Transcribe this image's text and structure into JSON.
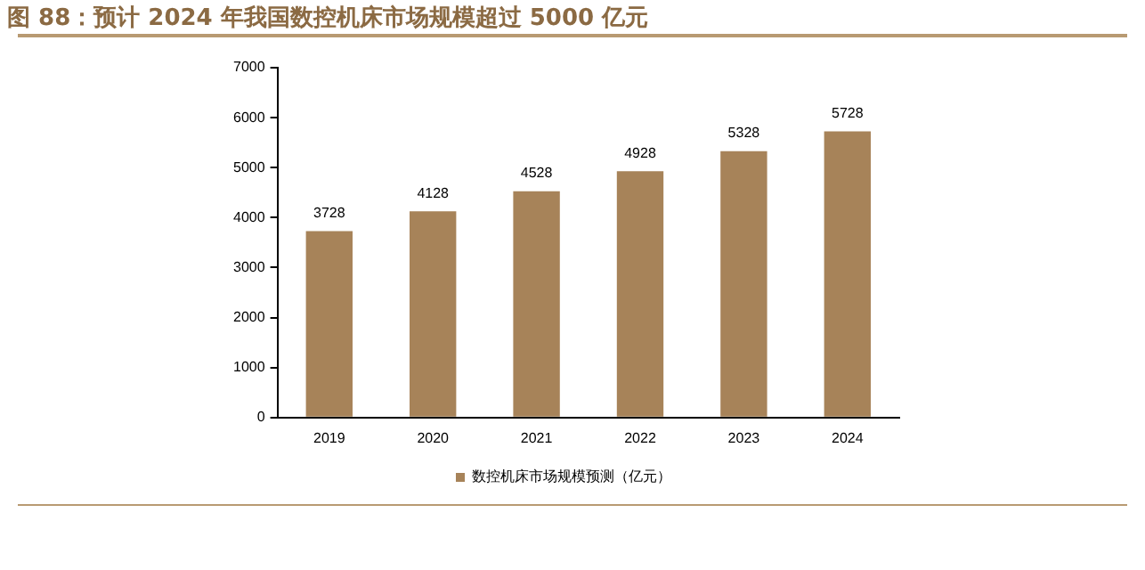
{
  "chart_data": {
    "type": "bar",
    "title": "图 88：预计 2024 年我国数控机床市场规模超过 5000 亿元",
    "categories": [
      "2019",
      "2020",
      "2021",
      "2022",
      "2023",
      "2024"
    ],
    "series": [
      {
        "name": "数控机床市场规模预测（亿元）",
        "color": "#a78359",
        "values": [
          3728,
          4128,
          4528,
          4928,
          5328,
          5728
        ]
      }
    ],
    "ylim": [
      0,
      7000
    ],
    "yticks": [
      0,
      1000,
      2000,
      3000,
      4000,
      5000,
      6000,
      7000
    ],
    "grid": false,
    "legend": "bottom",
    "data_labels": true
  }
}
